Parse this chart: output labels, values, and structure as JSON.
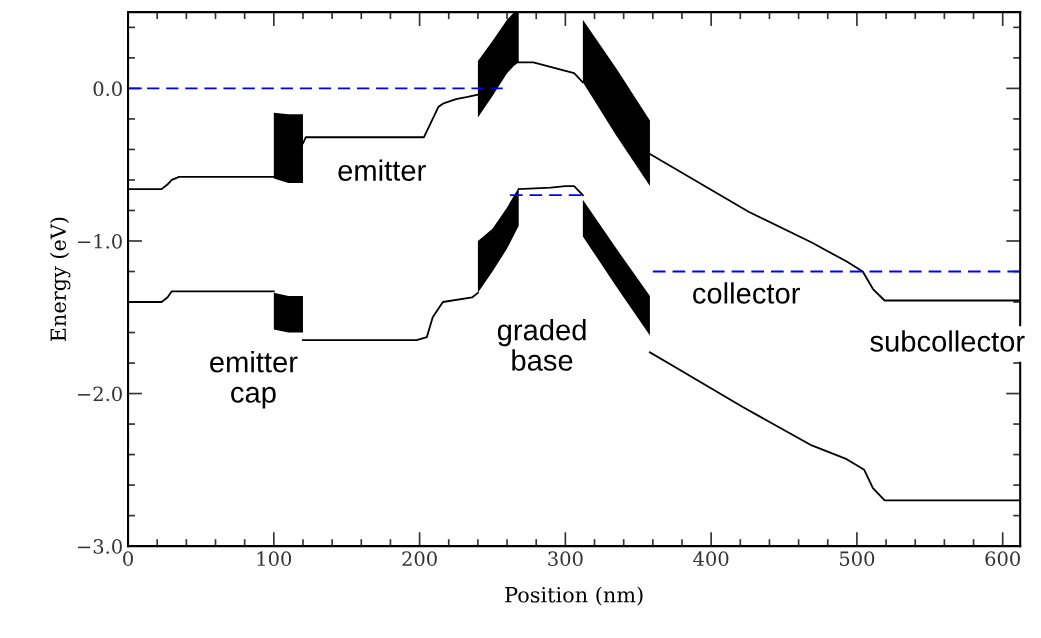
{
  "chart_data": {
    "type": "line",
    "xlabel": "Position (nm)",
    "ylabel": "Energy (eV)",
    "xlim": [
      0,
      612
    ],
    "ylim": [
      -3.0,
      0.5
    ],
    "xticks": [
      0,
      {
        "value": 20,
        "label": null
      },
      {
        "value": 40,
        "label": null
      },
      {
        "value": 60,
        "label": null
      },
      {
        "value": 80,
        "label": null
      },
      100,
      {
        "value": 120,
        "label": null
      },
      {
        "value": 140,
        "label": null
      },
      {
        "value": 160,
        "label": null
      },
      {
        "value": 180,
        "label": null
      },
      200,
      {
        "value": 220,
        "label": null
      },
      {
        "value": 240,
        "label": null
      },
      {
        "value": 260,
        "label": null
      },
      {
        "value": 280,
        "label": null
      },
      300,
      {
        "value": 320,
        "label": null
      },
      {
        "value": 340,
        "label": null
      },
      {
        "value": 360,
        "label": null
      },
      {
        "value": 380,
        "label": null
      },
      400,
      {
        "value": 420,
        "label": null
      },
      {
        "value": 440,
        "label": null
      },
      {
        "value": 460,
        "label": null
      },
      {
        "value": 480,
        "label": null
      },
      500,
      {
        "value": 520,
        "label": null
      },
      {
        "value": 540,
        "label": null
      },
      {
        "value": 560,
        "label": null
      },
      {
        "value": 580,
        "label": null
      },
      600
    ],
    "yticks": [
      {
        "value": -3.0,
        "label": "−3.0"
      },
      {
        "value": -2.8,
        "label": null
      },
      {
        "value": -2.6,
        "label": null
      },
      {
        "value": -2.4,
        "label": null
      },
      {
        "value": -2.2,
        "label": null
      },
      {
        "value": -2.0,
        "label": "−2.0"
      },
      {
        "value": -1.8,
        "label": null
      },
      {
        "value": -1.6,
        "label": null
      },
      {
        "value": -1.4,
        "label": null
      },
      {
        "value": -1.2,
        "label": null
      },
      {
        "value": -1.0,
        "label": "−1.0"
      },
      {
        "value": -0.8,
        "label": null
      },
      {
        "value": -0.6,
        "label": null
      },
      {
        "value": -0.4,
        "label": null
      },
      {
        "value": -0.2,
        "label": null
      },
      {
        "value": 0.0,
        "label": "0.0"
      },
      {
        "value": 0.2,
        "label": null
      },
      {
        "value": 0.4,
        "label": null
      }
    ],
    "grid": false,
    "legend": false,
    "marker": "none",
    "series": [
      {
        "color": "#000000",
        "line_style": "solid",
        "x": [
          0,
          23,
          27,
          30,
          35,
          100,
          100,
          110,
          120,
          120,
          122,
          203,
          209,
          213,
          216,
          225,
          233,
          240,
          240,
          250,
          260,
          265,
          268,
          268,
          278,
          306,
          312,
          312,
          335,
          358,
          358,
          426,
          469,
          493,
          504,
          511,
          519,
          612
        ],
        "values": [
          -0.66,
          -0.66,
          -0.63,
          -0.6,
          -0.58,
          -0.58,
          null,
          null,
          null,
          -0.36,
          -0.32,
          -0.32,
          -0.2,
          -0.12,
          -0.1,
          -0.07,
          -0.055,
          -0.04,
          null,
          null,
          null,
          null,
          null,
          0.17,
          0.17,
          0.1,
          0.04,
          null,
          null,
          null,
          -0.43,
          -0.81,
          -1.01,
          -1.135,
          -1.2,
          -1.315,
          -1.39,
          -1.39
        ],
        "lower": [
          null,
          null,
          null,
          null,
          null,
          null,
          -0.59,
          -0.62,
          -0.62,
          null,
          null,
          null,
          null,
          null,
          null,
          null,
          null,
          null,
          -0.19,
          -0.05,
          0.1,
          0.15,
          0.17,
          null,
          null,
          null,
          null,
          0.04,
          -0.31,
          -0.64,
          null,
          null,
          null,
          null,
          null,
          null,
          null,
          null
        ],
        "upper": [
          null,
          null,
          null,
          null,
          null,
          null,
          -0.16,
          -0.17,
          -0.17,
          null,
          null,
          null,
          null,
          null,
          null,
          null,
          null,
          null,
          0.18,
          0.31,
          0.45,
          0.5,
          0.5,
          null,
          null,
          null,
          null,
          0.45,
          0.13,
          -0.21,
          null,
          null,
          null,
          null,
          null,
          null,
          null,
          null
        ]
      },
      {
        "color": "#000000",
        "line_style": "solid",
        "x": [
          0,
          23,
          27,
          30,
          100,
          100,
          110,
          120,
          120,
          122,
          198,
          205,
          209,
          216,
          236,
          240,
          240,
          250,
          260,
          268,
          268,
          290,
          300,
          306,
          312,
          312,
          335,
          358,
          358,
          374,
          422,
          469,
          493,
          505,
          511,
          519,
          612
        ],
        "values": [
          -1.4,
          -1.4,
          -1.37,
          -1.33,
          -1.33,
          null,
          null,
          null,
          -1.65,
          -1.65,
          -1.65,
          -1.63,
          -1.5,
          -1.4,
          -1.37,
          -1.34,
          null,
          null,
          null,
          null,
          -0.66,
          -0.65,
          -0.64,
          -0.64,
          -0.7,
          null,
          null,
          null,
          -1.73,
          -1.82,
          -2.09,
          -2.34,
          -2.43,
          -2.5,
          -2.62,
          -2.7,
          -2.7
        ],
        "lower": [
          null,
          null,
          null,
          null,
          null,
          -1.58,
          -1.6,
          -1.6,
          null,
          null,
          null,
          null,
          null,
          null,
          null,
          null,
          -1.34,
          -1.2,
          -1.05,
          -0.9,
          null,
          null,
          null,
          null,
          null,
          -0.97,
          -1.3,
          -1.62,
          null,
          null,
          null,
          null,
          null,
          null,
          null,
          null,
          null
        ],
        "upper": [
          null,
          null,
          null,
          null,
          null,
          -1.34,
          -1.36,
          -1.36,
          null,
          null,
          null,
          null,
          null,
          null,
          null,
          null,
          -1.0,
          -0.92,
          -0.78,
          -0.65,
          null,
          null,
          null,
          null,
          null,
          -0.73,
          -1.05,
          -1.36,
          null,
          null,
          null,
          null,
          null,
          null,
          null,
          null,
          null
        ]
      },
      {
        "color": "#0000ff",
        "line_style": "dashed",
        "x": [
          0,
          257
        ],
        "values": [
          0.0,
          0.0
        ]
      },
      {
        "color": "#0000ff",
        "line_style": "dashed",
        "x": [
          262,
          311
        ],
        "values": [
          -0.7,
          -0.7
        ]
      },
      {
        "color": "#0000ff",
        "line_style": "dashed",
        "x": [
          360,
          612
        ],
        "values": [
          -1.2,
          -1.2
        ]
      }
    ],
    "annotations": [
      "emitter",
      "emitter\ncap",
      "graded\nbase",
      "collector",
      "subcollector"
    ]
  }
}
